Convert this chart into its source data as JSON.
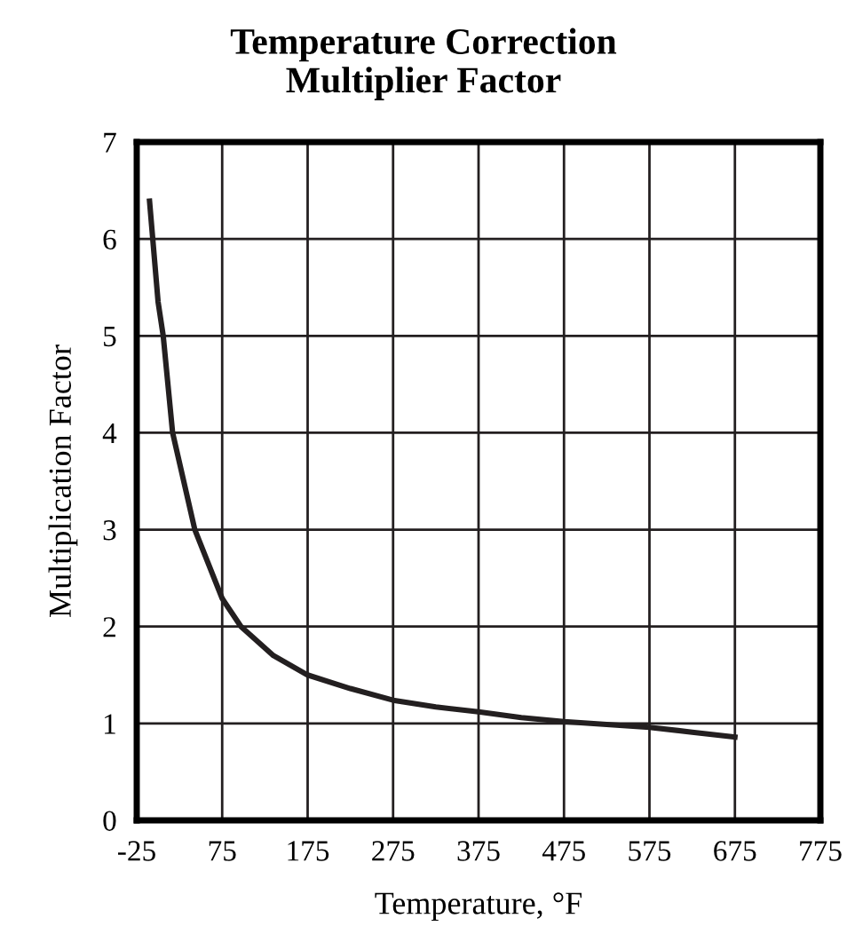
{
  "chart_data": {
    "type": "line",
    "title": "Temperature Correction\nMultiplier Factor",
    "xlabel": "Temperature, °F",
    "ylabel": "Multiplication Factor",
    "x": [
      -10,
      0,
      6,
      17,
      43,
      75,
      97,
      135,
      175,
      225,
      275,
      325,
      375,
      425,
      475,
      525,
      575,
      625,
      675
    ],
    "series": [
      {
        "color": "#231f20",
        "values": [
          6.39,
          5.35,
          5.0,
          4.0,
          3.0,
          2.29,
          2.0,
          1.7,
          1.5,
          1.36,
          1.24,
          1.17,
          1.12,
          1.06,
          1.02,
          0.99,
          0.96,
          0.91,
          0.86
        ]
      }
    ],
    "xlim": [
      -25,
      775
    ],
    "xticks": [
      -25,
      75,
      175,
      275,
      375,
      475,
      575,
      675,
      775
    ],
    "ylim": [
      0,
      7
    ],
    "yticks": [
      0,
      1,
      2,
      3,
      4,
      5,
      6,
      7
    ],
    "grid": true,
    "marker": "none",
    "line_style": "solid"
  }
}
